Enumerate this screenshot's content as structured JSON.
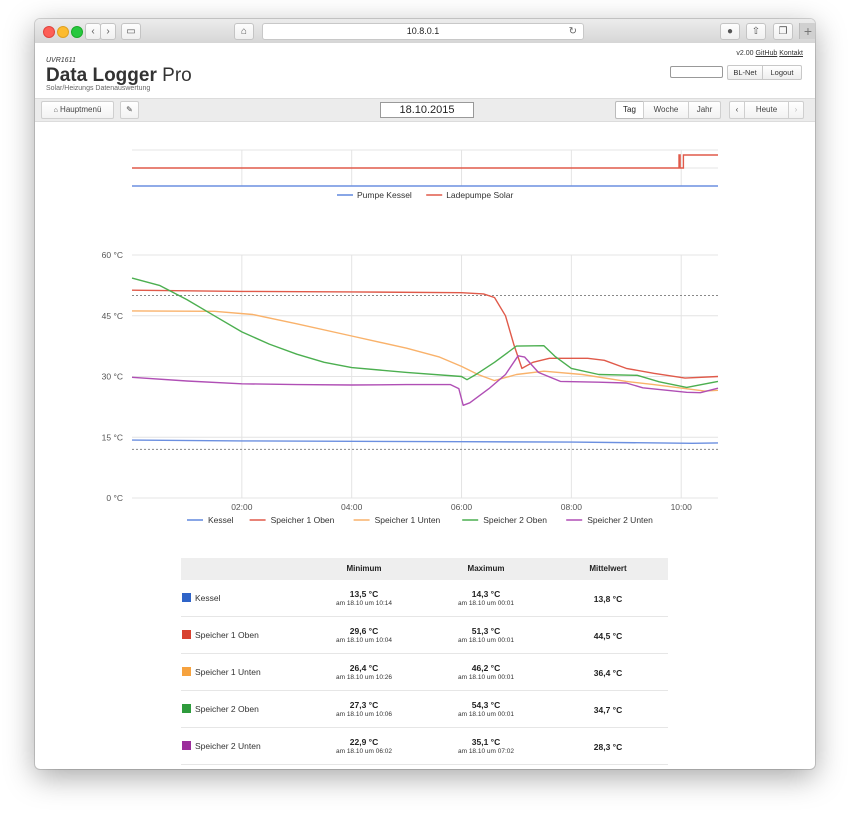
{
  "browser": {
    "url": "10.8.0.1",
    "back_icon": "chevron-left-icon",
    "forward_icon": "chevron-right-icon",
    "home_icon": "home-icon",
    "reload_icon": "reload-icon",
    "download_icon": "download-icon",
    "share_icon": "share-icon",
    "tabs_icon": "tabs-icon",
    "new_tab_label": "+"
  },
  "header": {
    "product_code": "UVR1611",
    "title_main": "Data Logger",
    "title_suffix": "Pro",
    "subtitle": "Solar/Heizungs Datenauswertung",
    "version": "v2.00",
    "github_label": "GitHub",
    "kontakt_label": "Kontakt",
    "blnet_label": "BL-Net",
    "logout_label": "Logout"
  },
  "toolbar": {
    "menu_label": "Hauptmenü",
    "date": "18.10.2015",
    "tabs": [
      "Tag",
      "Woche",
      "Jahr"
    ],
    "active_tab": "Tag",
    "prev_label": "‹",
    "today_label": "Heute",
    "next_label": "›"
  },
  "colors": {
    "blue": "#6b8fe0",
    "red": "#e05a4a",
    "orange": "#f9b26b",
    "green": "#4caf50",
    "purple": "#b04fb5",
    "kessel_swatch": "#2f64c8",
    "speicher1oben_swatch": "#d8412f",
    "speicher1unten_swatch": "#f6a23e",
    "speicher2oben_swatch": "#2e9b3c",
    "speicher2unten_swatch": "#9b2d9b"
  },
  "chart_data": [
    {
      "type": "line",
      "title": "",
      "x_range": [
        "00:00",
        "10:40"
      ],
      "series": [
        {
          "name": "Pumpe Kessel",
          "color": "#6b8fe0",
          "points": [
            [
              0,
              0
            ],
            [
              10.67,
              0
            ]
          ]
        },
        {
          "name": "Ladepumpe Solar",
          "color": "#e05a4a",
          "points": [
            [
              0,
              1
            ],
            [
              9.95,
              1
            ],
            [
              9.96,
              2
            ],
            [
              9.98,
              1
            ],
            [
              10.03,
              1
            ],
            [
              10.04,
              2
            ],
            [
              10.67,
              2
            ]
          ]
        }
      ],
      "legend": [
        "Pumpe Kessel",
        "Ladepumpe Solar"
      ],
      "legend_position": "bottom"
    },
    {
      "type": "line",
      "title": "",
      "x_ticks": [
        "02:00",
        "04:00",
        "06:00",
        "08:00",
        "10:00"
      ],
      "y_ticks": [
        "0 °C",
        "15 °C",
        "30 °C",
        "45 °C",
        "60 °C"
      ],
      "ylim": [
        0,
        60
      ],
      "xlim": [
        0,
        10.67
      ],
      "reference_lines": [
        50,
        12
      ],
      "grid": true,
      "legend_position": "bottom",
      "series": [
        {
          "name": "Kessel",
          "color": "#6b8fe0",
          "points": [
            [
              0,
              14.3
            ],
            [
              2,
              14.1
            ],
            [
              4,
              14.0
            ],
            [
              6,
              13.9
            ],
            [
              8,
              13.8
            ],
            [
              10.2,
              13.5
            ],
            [
              10.67,
              13.6
            ]
          ]
        },
        {
          "name": "Speicher 1 Oben",
          "color": "#e05a4a",
          "points": [
            [
              0,
              51.3
            ],
            [
              2,
              51.0
            ],
            [
              4,
              50.9
            ],
            [
              6,
              50.7
            ],
            [
              6.4,
              50.4
            ],
            [
              6.6,
              49.5
            ],
            [
              6.8,
              45
            ],
            [
              6.95,
              38
            ],
            [
              7.1,
              32
            ],
            [
              7.3,
              33.5
            ],
            [
              7.6,
              34.5
            ],
            [
              8.3,
              34.5
            ],
            [
              8.6,
              34
            ],
            [
              9.0,
              32
            ],
            [
              9.5,
              30.8
            ],
            [
              10.07,
              29.6
            ],
            [
              10.67,
              30.0
            ]
          ]
        },
        {
          "name": "Speicher 1 Unten",
          "color": "#f9b26b",
          "points": [
            [
              0,
              46.2
            ],
            [
              1.5,
              46.1
            ],
            [
              2.2,
              45.3
            ],
            [
              3,
              43
            ],
            [
              4,
              40
            ],
            [
              5,
              37
            ],
            [
              5.6,
              34.8
            ],
            [
              6,
              32.5
            ],
            [
              6.3,
              30.5
            ],
            [
              6.6,
              29
            ],
            [
              7,
              30.5
            ],
            [
              7.5,
              31.3
            ],
            [
              8.2,
              30.5
            ],
            [
              9,
              28.8
            ],
            [
              9.5,
              28
            ],
            [
              10.43,
              26.4
            ],
            [
              10.67,
              26.6
            ]
          ]
        },
        {
          "name": "Speicher 2 Oben",
          "color": "#4caf50",
          "points": [
            [
              0,
              54.3
            ],
            [
              0.5,
              52.5
            ],
            [
              1,
              49
            ],
            [
              1.5,
              45
            ],
            [
              2,
              41
            ],
            [
              2.5,
              38
            ],
            [
              3,
              35.5
            ],
            [
              3.5,
              33.5
            ],
            [
              4,
              32.2
            ],
            [
              5,
              31
            ],
            [
              6,
              30
            ],
            [
              6.1,
              29.2
            ],
            [
              6.25,
              30.4
            ],
            [
              6.6,
              33.5
            ],
            [
              7,
              37.5
            ],
            [
              7.5,
              37.6
            ],
            [
              7.7,
              35
            ],
            [
              8,
              32
            ],
            [
              8.5,
              30.5
            ],
            [
              9.2,
              30.3
            ],
            [
              9.6,
              28.7
            ],
            [
              10.1,
              27.3
            ],
            [
              10.67,
              28.8
            ]
          ]
        },
        {
          "name": "Speicher 2 Unten",
          "color": "#b04fb5",
          "points": [
            [
              0,
              29.8
            ],
            [
              1,
              28.9
            ],
            [
              2,
              28.2
            ],
            [
              3,
              28
            ],
            [
              4,
              27.9
            ],
            [
              5,
              28
            ],
            [
              5.8,
              28
            ],
            [
              5.95,
              27
            ],
            [
              6.03,
              22.9
            ],
            [
              6.15,
              23.5
            ],
            [
              6.5,
              27
            ],
            [
              6.8,
              30.5
            ],
            [
              7.03,
              35.1
            ],
            [
              7.15,
              34.8
            ],
            [
              7.4,
              31
            ],
            [
              7.8,
              28.8
            ],
            [
              8.5,
              28.6
            ],
            [
              9,
              28.4
            ],
            [
              9.3,
              27.2
            ],
            [
              10.1,
              26.1
            ],
            [
              10.35,
              26.0
            ],
            [
              10.67,
              27.1
            ]
          ]
        }
      ]
    }
  ],
  "stats": {
    "headers": [
      "Minimum",
      "Maximum",
      "Mittelwert"
    ],
    "rows": [
      {
        "name": "Kessel",
        "color": "#2f64c8",
        "min": "13,5 °C",
        "min_date": "am 18.10 um 10:14",
        "max": "14,3 °C",
        "max_date": "am 18.10 um 00:01",
        "avg": "13,8 °C"
      },
      {
        "name": "Speicher 1 Oben",
        "color": "#d8412f",
        "min": "29,6 °C",
        "min_date": "am 18.10 um 10:04",
        "max": "51,3 °C",
        "max_date": "am 18.10 um 00:01",
        "avg": "44,5 °C"
      },
      {
        "name": "Speicher 1 Unten",
        "color": "#f6a23e",
        "min": "26,4 °C",
        "min_date": "am 18.10 um 10:26",
        "max": "46,2 °C",
        "max_date": "am 18.10 um 00:01",
        "avg": "36,4 °C"
      },
      {
        "name": "Speicher 2 Oben",
        "color": "#2e9b3c",
        "min": "27,3 °C",
        "min_date": "am 18.10 um 10:06",
        "max": "54,3 °C",
        "max_date": "am 18.10 um 00:01",
        "avg": "34,7 °C"
      },
      {
        "name": "Speicher 2 Unten",
        "color": "#9b2d9b",
        "min": "22,9 °C",
        "min_date": "am 18.10 um 06:02",
        "max": "35,1 °C",
        "max_date": "am 18.10 um 07:02",
        "avg": "28,3 °C"
      }
    ]
  }
}
